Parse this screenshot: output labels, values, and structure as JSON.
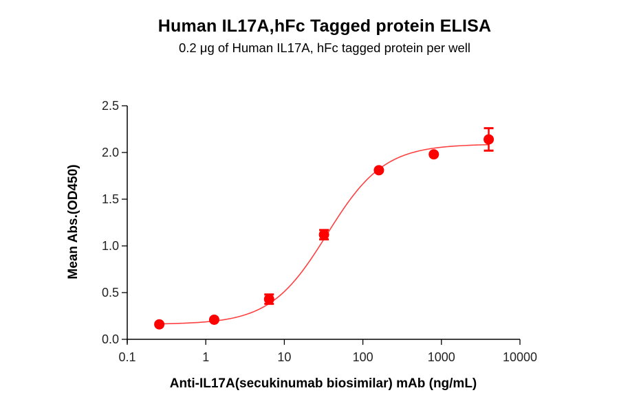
{
  "title": "Human IL17A,hFc Tagged protein ELISA",
  "subtitle": "0.2 μg of Human IL17A, hFc tagged protein per well",
  "colors": {
    "points": "#FF0000",
    "curve": "#FF4040",
    "axis": "#000000"
  },
  "chart_data": {
    "type": "scatter",
    "title": "Human IL17A,hFc Tagged protein ELISA",
    "subtitle": "0.2 μg of Human IL17A, hFc tagged protein per well",
    "xlabel": "Anti-IL17A(secukinumab biosimilar) mAb (ng/mL)",
    "ylabel": "Mean Abs.(OD450)",
    "xscale": "log",
    "xlim": [
      0.1,
      10000
    ],
    "ylim": [
      0.0,
      2.5
    ],
    "x_ticks": [
      "0.1",
      "1",
      "10",
      "100",
      "1000",
      "10000"
    ],
    "y_ticks": [
      "0.0",
      "0.5",
      "1.0",
      "1.5",
      "2.0",
      "2.5"
    ],
    "grid": false,
    "legend": null,
    "series": [
      {
        "name": "Human IL17A,hFc",
        "x": [
          0.256,
          1.28,
          6.4,
          32,
          160,
          800,
          4000
        ],
        "y": [
          0.16,
          0.21,
          0.43,
          1.12,
          1.81,
          1.98,
          2.14
        ],
        "error": [
          0.01,
          0.01,
          0.05,
          0.05,
          0.01,
          0.01,
          0.12
        ]
      }
    ],
    "fit": {
      "model": "4PL",
      "bottom": 0.16,
      "top": 2.09,
      "ec50": 35,
      "hill": 1.2
    }
  }
}
